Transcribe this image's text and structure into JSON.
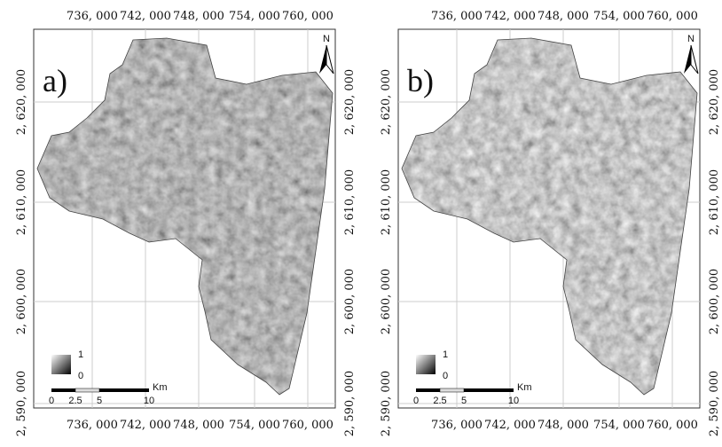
{
  "x_tick_labels": [
    "736, 000",
    "742, 000",
    "748, 000",
    "754, 000",
    "760, 000"
  ],
  "y_tick_labels": [
    "2, 620, 000",
    "2, 610, 000",
    "2, 600, 000",
    "2, 590, 000"
  ],
  "north": "N",
  "legend": {
    "high": "1",
    "low": "0"
  },
  "scale_bar": {
    "labels": [
      "0",
      "2.5",
      "5",
      "10"
    ],
    "unit": "Km"
  },
  "panels": [
    {
      "label": "a)"
    },
    {
      "label": "b)"
    }
  ]
}
